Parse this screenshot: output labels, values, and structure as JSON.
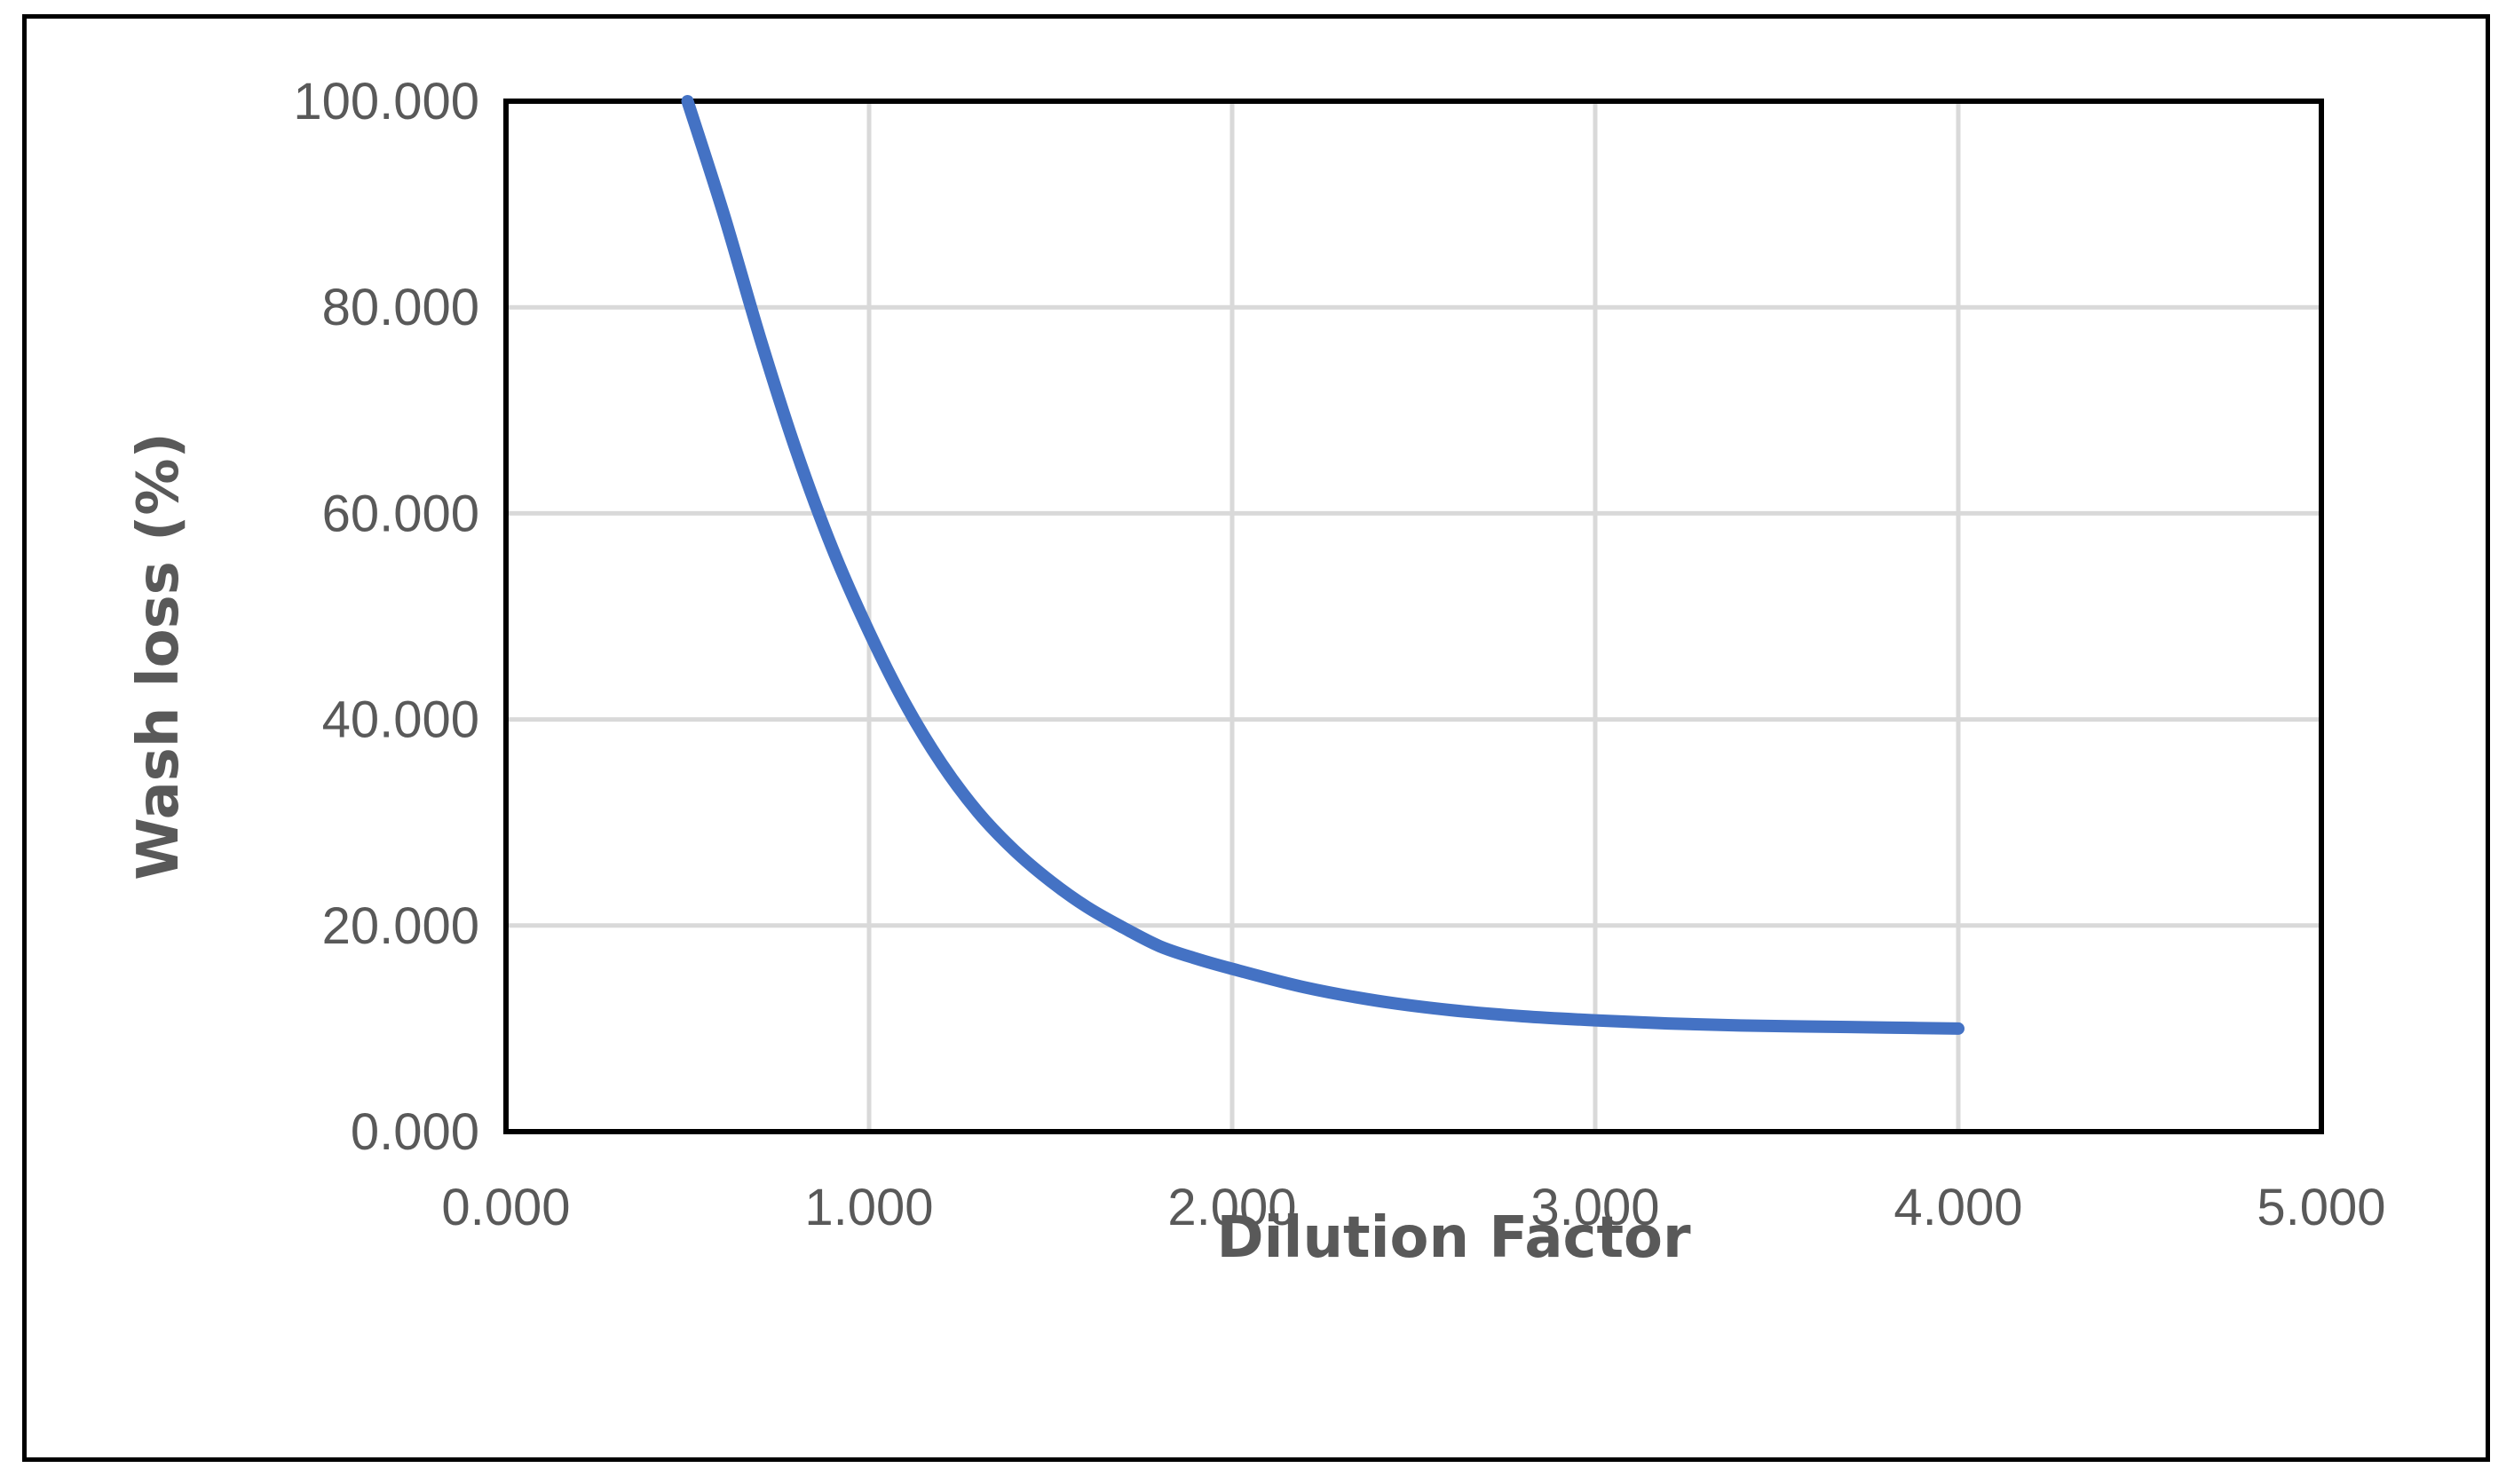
{
  "chart_data": {
    "type": "line",
    "title": "",
    "xlabel": "Dilution Factor",
    "ylabel": "Wash  loss (%)",
    "xlim": [
      0,
      5
    ],
    "ylim": [
      0,
      100
    ],
    "x_ticks": [
      "0.000",
      "1.000",
      "2.000",
      "3.000",
      "4.000",
      "5.000"
    ],
    "y_ticks": [
      "0.000",
      "20.000",
      "40.000",
      "60.000",
      "80.000",
      "100.000"
    ],
    "grid": true,
    "legend": "none",
    "series": [
      {
        "color": "#4472c4",
        "x": [
          0.5,
          0.6,
          0.7,
          0.8,
          0.9,
          1.0,
          1.1,
          1.2,
          1.3,
          1.4,
          1.5,
          1.6,
          1.7,
          1.8,
          1.9,
          2.0,
          2.2,
          2.4,
          2.6,
          2.8,
          3.0,
          3.2,
          3.4,
          3.6,
          3.8,
          4.0
        ],
        "y": [
          100.0,
          89.0,
          77.0,
          66.0,
          56.5,
          48.5,
          41.5,
          35.7,
          31.0,
          27.3,
          24.3,
          21.8,
          19.8,
          18.0,
          16.8,
          15.8,
          14.0,
          12.7,
          11.8,
          11.2,
          10.8,
          10.5,
          10.3,
          10.2,
          10.1,
          10.0
        ]
      }
    ]
  }
}
